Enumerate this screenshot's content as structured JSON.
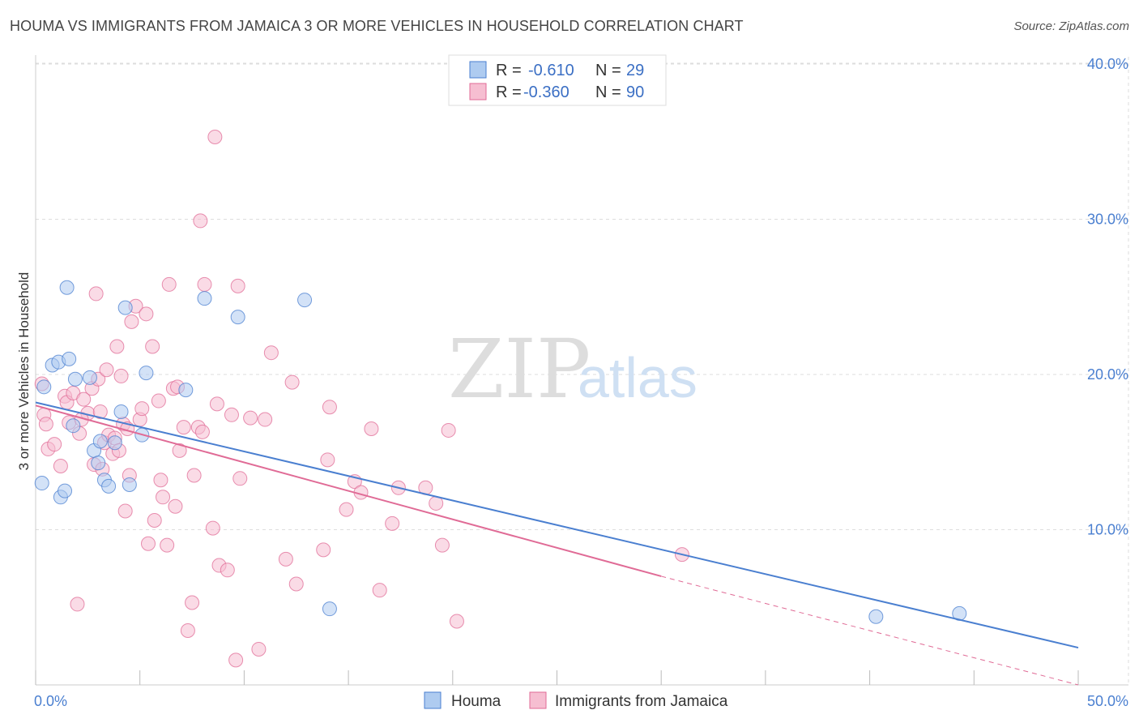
{
  "title": "HOUMA VS IMMIGRANTS FROM JAMAICA 3 OR MORE VEHICLES IN HOUSEHOLD CORRELATION CHART",
  "source": "Source: ZipAtlas.com",
  "watermark": {
    "zip": "ZIP",
    "atlas": "atlas"
  },
  "colors": {
    "houma": "#4a7fd0",
    "houma_fill": "#aecbf0",
    "jamaica": "#e06b96",
    "jamaica_fill": "#f6bed1",
    "axis_label": "#4a7fd0",
    "grid": "#dddddd"
  },
  "legend_top": {
    "rows": [
      {
        "r_label": "R =",
        "r_value": "-0.610",
        "n_label": "N =",
        "n_value": "29"
      },
      {
        "r_label": "R =",
        "r_value": "-0.360",
        "n_label": "N =",
        "n_value": "90"
      }
    ]
  },
  "legend_bottom": {
    "houma": "Houma",
    "jamaica": "Immigrants from Jamaica"
  },
  "chart_data": {
    "type": "scatter",
    "title": "HOUMA VS IMMIGRANTS FROM JAMAICA 3 OR MORE VEHICLES IN HOUSEHOLD CORRELATION CHART",
    "xlabel": "",
    "ylabel": "3 or more Vehicles in Household",
    "xlim": [
      0,
      50
    ],
    "ylim": [
      0,
      40
    ],
    "x_tick_labels": [
      "0.0%",
      "50.0%"
    ],
    "y_ticks": [
      10,
      20,
      30,
      40
    ],
    "y_tick_labels": [
      "10.0%",
      "20.0%",
      "30.0%",
      "40.0%"
    ],
    "grid": true,
    "legend_position": "top-center",
    "series": [
      {
        "name": "Houma",
        "color": "#4a7fd0",
        "r": -0.61,
        "n": 29,
        "trend": {
          "x0": 0,
          "y0": 18.2,
          "x1": 50,
          "y1": 2.4
        },
        "points": [
          [
            0.3,
            13.0
          ],
          [
            0.4,
            19.2
          ],
          [
            0.8,
            20.6
          ],
          [
            1.1,
            20.8
          ],
          [
            1.2,
            12.1
          ],
          [
            1.4,
            12.5
          ],
          [
            1.5,
            25.6
          ],
          [
            1.6,
            21.0
          ],
          [
            1.8,
            16.7
          ],
          [
            1.9,
            19.7
          ],
          [
            2.6,
            19.8
          ],
          [
            2.8,
            15.1
          ],
          [
            3.0,
            14.3
          ],
          [
            3.1,
            15.7
          ],
          [
            3.3,
            13.2
          ],
          [
            3.5,
            12.8
          ],
          [
            3.8,
            15.6
          ],
          [
            4.1,
            17.6
          ],
          [
            4.3,
            24.3
          ],
          [
            4.5,
            12.9
          ],
          [
            5.1,
            16.1
          ],
          [
            5.3,
            20.1
          ],
          [
            7.2,
            19.0
          ],
          [
            8.1,
            24.9
          ],
          [
            9.7,
            23.7
          ],
          [
            14.1,
            4.9
          ],
          [
            40.3,
            4.4
          ],
          [
            44.3,
            4.6
          ],
          [
            12.9,
            24.8
          ]
        ]
      },
      {
        "name": "Immigrants from Jamaica",
        "color": "#e06b96",
        "r": -0.36,
        "n": 90,
        "trend": {
          "x0": 0,
          "y0": 18.0,
          "x1": 30,
          "y1": 7.0
        },
        "trend_dashed": {
          "x0": 30,
          "y0": 7.0,
          "x1": 50,
          "y1": 0.0
        },
        "points": [
          [
            0.3,
            19.4
          ],
          [
            0.4,
            17.4
          ],
          [
            0.5,
            16.8
          ],
          [
            0.6,
            15.2
          ],
          [
            0.9,
            15.5
          ],
          [
            1.2,
            14.1
          ],
          [
            1.4,
            18.6
          ],
          [
            1.5,
            18.2
          ],
          [
            1.6,
            16.9
          ],
          [
            1.8,
            18.8
          ],
          [
            2.0,
            5.2
          ],
          [
            2.1,
            16.2
          ],
          [
            2.3,
            18.4
          ],
          [
            2.5,
            17.5
          ],
          [
            2.7,
            19.1
          ],
          [
            2.8,
            14.2
          ],
          [
            2.9,
            25.2
          ],
          [
            3.0,
            19.7
          ],
          [
            3.1,
            17.6
          ],
          [
            3.3,
            15.6
          ],
          [
            3.4,
            20.3
          ],
          [
            3.5,
            16.1
          ],
          [
            3.7,
            14.9
          ],
          [
            3.8,
            15.9
          ],
          [
            3.9,
            21.8
          ],
          [
            4.0,
            15.1
          ],
          [
            4.1,
            19.9
          ],
          [
            4.2,
            16.8
          ],
          [
            4.3,
            11.2
          ],
          [
            4.5,
            13.5
          ],
          [
            4.6,
            23.4
          ],
          [
            4.8,
            24.4
          ],
          [
            5.0,
            17.1
          ],
          [
            5.1,
            17.8
          ],
          [
            5.3,
            23.9
          ],
          [
            5.4,
            9.1
          ],
          [
            5.6,
            21.8
          ],
          [
            5.7,
            10.6
          ],
          [
            5.9,
            18.3
          ],
          [
            6.0,
            13.2
          ],
          [
            6.1,
            12.1
          ],
          [
            6.3,
            9.0
          ],
          [
            6.4,
            25.8
          ],
          [
            6.6,
            19.1
          ],
          [
            6.7,
            11.5
          ],
          [
            6.9,
            15.1
          ],
          [
            7.1,
            16.6
          ],
          [
            7.3,
            3.5
          ],
          [
            7.5,
            5.3
          ],
          [
            7.6,
            13.5
          ],
          [
            7.8,
            16.6
          ],
          [
            7.9,
            29.9
          ],
          [
            8.0,
            16.3
          ],
          [
            8.1,
            25.8
          ],
          [
            8.5,
            10.1
          ],
          [
            8.7,
            18.1
          ],
          [
            8.8,
            7.7
          ],
          [
            9.2,
            7.4
          ],
          [
            9.4,
            17.4
          ],
          [
            9.6,
            1.6
          ],
          [
            9.7,
            25.7
          ],
          [
            9.8,
            13.3
          ],
          [
            10.3,
            17.2
          ],
          [
            10.7,
            2.3
          ],
          [
            11.0,
            17.1
          ],
          [
            11.3,
            21.4
          ],
          [
            12.0,
            8.1
          ],
          [
            12.3,
            19.5
          ],
          [
            12.5,
            6.5
          ],
          [
            13.8,
            8.7
          ],
          [
            14.0,
            14.5
          ],
          [
            14.1,
            17.9
          ],
          [
            14.9,
            11.3
          ],
          [
            15.3,
            13.1
          ],
          [
            15.6,
            12.4
          ],
          [
            16.1,
            16.5
          ],
          [
            16.5,
            6.1
          ],
          [
            17.1,
            10.4
          ],
          [
            17.4,
            12.7
          ],
          [
            18.7,
            12.7
          ],
          [
            19.2,
            11.7
          ],
          [
            19.5,
            9.0
          ],
          [
            19.8,
            16.4
          ],
          [
            20.2,
            4.1
          ],
          [
            31.0,
            8.4
          ],
          [
            8.6,
            35.3
          ],
          [
            4.4,
            16.5
          ],
          [
            6.8,
            19.2
          ],
          [
            2.2,
            17.1
          ],
          [
            3.2,
            13.9
          ]
        ]
      }
    ]
  }
}
